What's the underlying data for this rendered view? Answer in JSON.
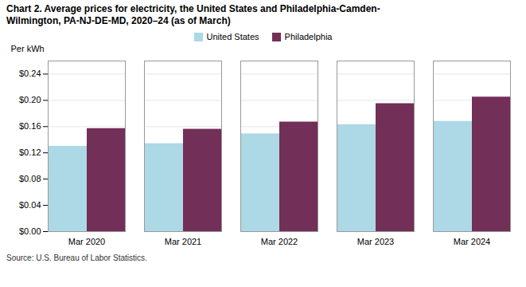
{
  "chart_data": {
    "type": "bar",
    "title": "Chart 2. Average prices for electricity, the United States and Philadelphia-Camden-\nWilmington, PA-NJ-DE-MD, 2020–24 (as of March)",
    "ylabel": "Per kWh",
    "source": "Source: U.S. Bureau of Labor Statistics.",
    "categories": [
      "Mar 2020",
      "Mar 2021",
      "Mar 2022",
      "Mar 2023",
      "Mar 2024"
    ],
    "series": [
      {
        "name": "United States",
        "color": "#ADD8E6",
        "values": [
          0.13,
          0.134,
          0.149,
          0.163,
          0.168
        ]
      },
      {
        "name": "Philadelphia",
        "color": "#722F57",
        "values": [
          0.157,
          0.156,
          0.167,
          0.195,
          0.205
        ]
      }
    ],
    "ylim": [
      0,
      0.26
    ],
    "yticks": [
      {
        "value": 0.0,
        "label": "$0.00"
      },
      {
        "value": 0.04,
        "label": "$0.04"
      },
      {
        "value": 0.08,
        "label": "$0.08"
      },
      {
        "value": 0.12,
        "label": "$0.12"
      },
      {
        "value": 0.16,
        "label": "$0.16"
      },
      {
        "value": 0.2,
        "label": "$0.20"
      },
      {
        "value": 0.24,
        "label": "$0.24"
      }
    ],
    "grid": true,
    "legend": "top"
  }
}
